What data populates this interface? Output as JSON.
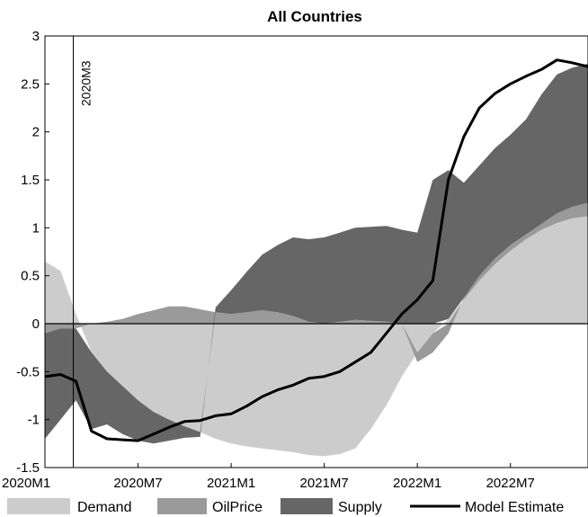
{
  "chart_data": {
    "type": "area",
    "title": "All Countries",
    "xlabel": "",
    "ylabel": "",
    "ylim": [
      -1.5,
      3
    ],
    "xlim": [
      "2020M1",
      "2022M12"
    ],
    "y_ticks": [
      "-1.5",
      "-1",
      "-0.5",
      "0",
      "0.5",
      "1",
      "1.5",
      "2",
      "2.5",
      "3"
    ],
    "x_ticks": [
      "2020M1",
      "2020M7",
      "2021M1",
      "2021M7",
      "2022M1",
      "2022M7"
    ],
    "vertical_marker": {
      "x": "2020M3",
      "label": "2020M3"
    },
    "x": [
      "2020M1",
      "2020M2",
      "2020M3",
      "2020M4",
      "2020M5",
      "2020M6",
      "2020M7",
      "2020M8",
      "2020M9",
      "2020M10",
      "2020M11",
      "2020M12",
      "2021M1",
      "2021M2",
      "2021M3",
      "2021M4",
      "2021M5",
      "2021M6",
      "2021M7",
      "2021M8",
      "2021M9",
      "2021M10",
      "2021M11",
      "2021M12",
      "2022M1",
      "2022M2",
      "2022M3",
      "2022M4",
      "2022M5",
      "2022M6",
      "2022M7",
      "2022M8",
      "2022M9",
      "2022M10",
      "2022M11",
      "2022M12"
    ],
    "series": [
      {
        "name": "Demand",
        "kind": "area",
        "color": "#cccccc",
        "values": [
          0.65,
          0.55,
          0.1,
          -0.3,
          -0.5,
          -0.65,
          -0.8,
          -0.92,
          -1.0,
          -1.07,
          -1.13,
          -1.2,
          -1.25,
          -1.28,
          -1.3,
          -1.32,
          -1.34,
          -1.37,
          -1.38,
          -1.36,
          -1.3,
          -1.1,
          -0.85,
          -0.55,
          -0.3,
          -0.1,
          0.05,
          0.25,
          0.45,
          0.62,
          0.76,
          0.88,
          0.98,
          1.05,
          1.1,
          1.12
        ]
      },
      {
        "name": "OilPrice",
        "kind": "area",
        "color": "#9a9a9a",
        "values": [
          -0.1,
          -0.05,
          -0.05,
          0.0,
          0.02,
          0.05,
          0.1,
          0.14,
          0.18,
          0.18,
          0.15,
          0.12,
          0.1,
          0.12,
          0.14,
          0.12,
          0.08,
          0.02,
          0.0,
          0.02,
          0.04,
          0.03,
          0.02,
          0.0,
          -0.1,
          -0.2,
          -0.1,
          0.02,
          0.05,
          0.06,
          0.06,
          0.05,
          0.06,
          0.1,
          0.12,
          0.14
        ]
      },
      {
        "name": "Supply",
        "kind": "area",
        "color": "#666666",
        "values": [
          -1.1,
          -0.95,
          -0.75,
          -0.8,
          -0.55,
          -0.5,
          -0.42,
          -0.33,
          -0.22,
          -0.12,
          -0.05,
          0.05,
          0.25,
          0.42,
          0.58,
          0.7,
          0.82,
          0.86,
          0.9,
          0.93,
          0.96,
          0.98,
          1.0,
          0.98,
          0.95,
          1.5,
          1.55,
          1.2,
          1.15,
          1.15,
          1.15,
          1.2,
          1.35,
          1.45,
          1.45,
          1.45
        ]
      },
      {
        "name": "Model Estimate",
        "kind": "line",
        "color": "#000000",
        "values": [
          -0.55,
          -0.53,
          -0.6,
          -1.12,
          -1.2,
          -1.21,
          -1.22,
          -1.15,
          -1.08,
          -1.02,
          -1.01,
          -0.96,
          -0.94,
          -0.86,
          -0.76,
          -0.69,
          -0.64,
          -0.57,
          -0.55,
          -0.5,
          -0.4,
          -0.3,
          -0.1,
          0.1,
          0.25,
          0.45,
          1.5,
          1.95,
          2.25,
          2.4,
          2.5,
          2.58,
          2.65,
          2.75,
          2.72,
          2.68
        ]
      }
    ],
    "legend": {
      "position": "bottom",
      "entries": [
        "Demand",
        "OilPrice",
        "Supply",
        "Model Estimate"
      ]
    },
    "grid": false
  }
}
